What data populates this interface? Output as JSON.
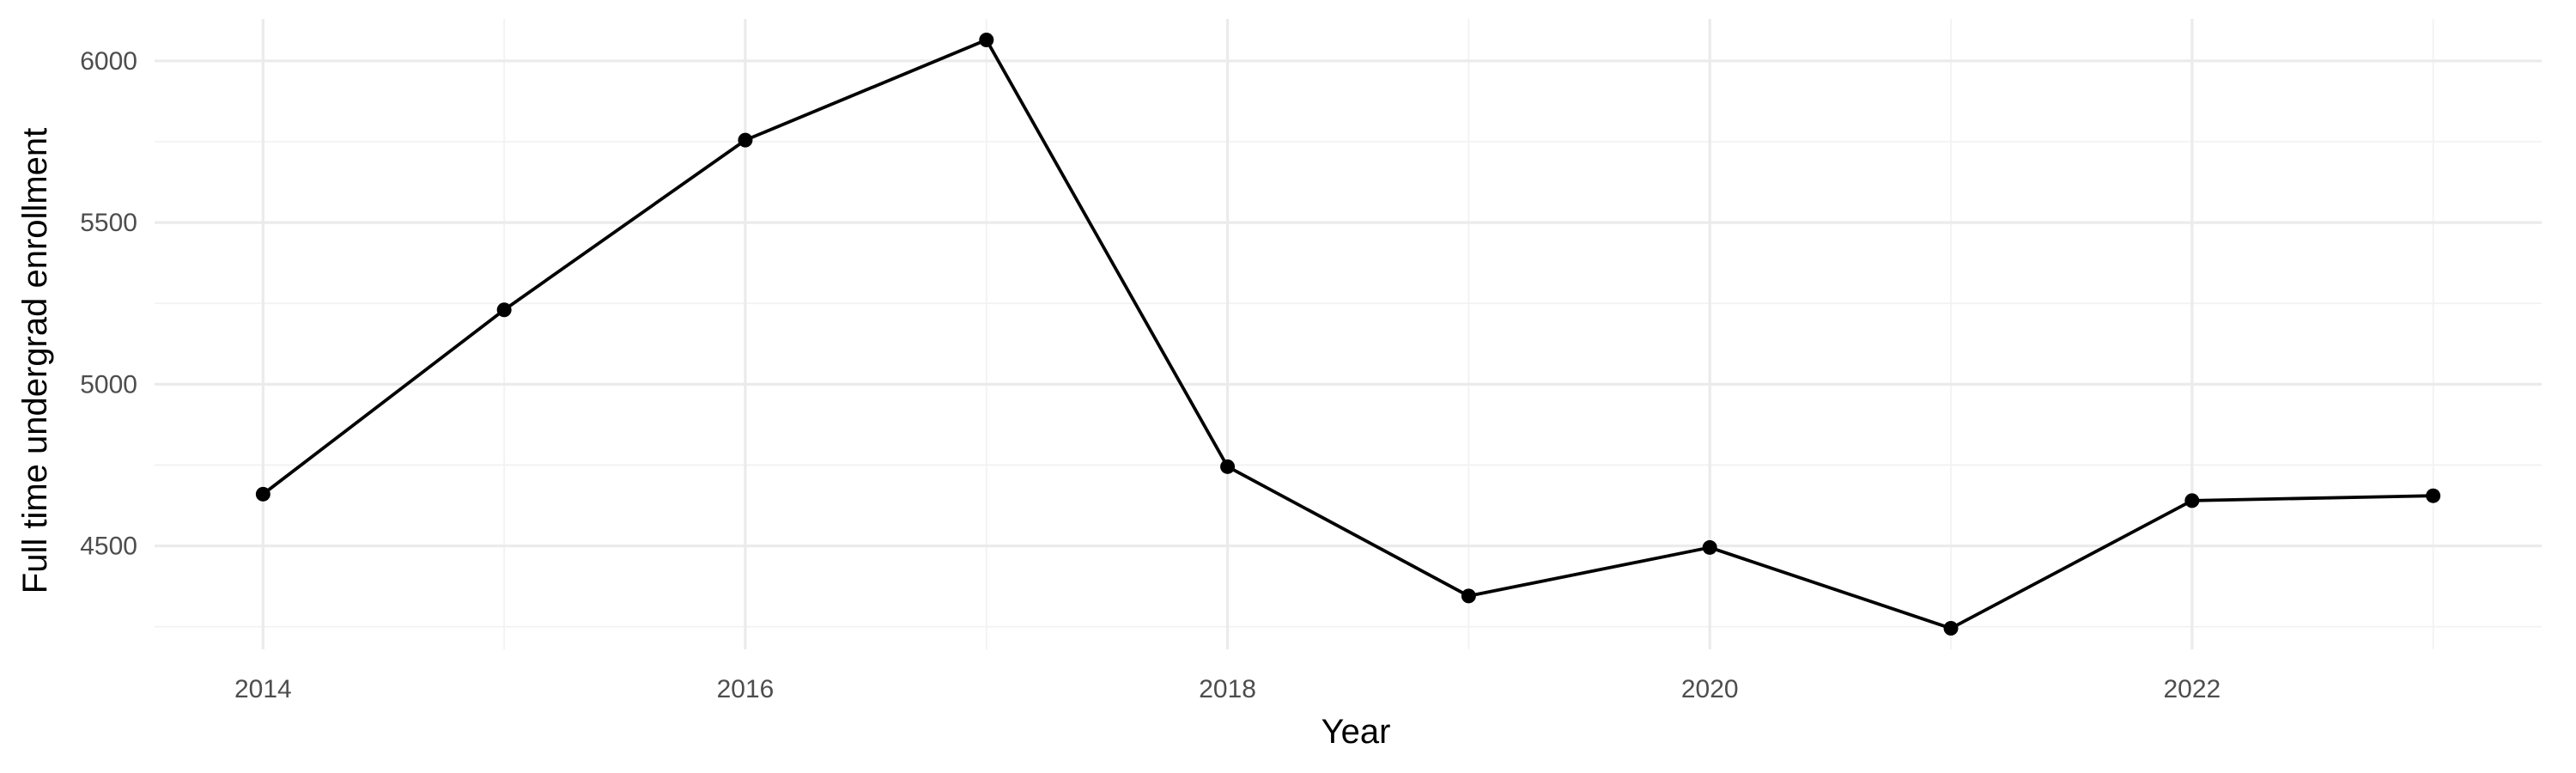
{
  "chart_data": {
    "type": "line",
    "title": "",
    "xlabel": "Year",
    "ylabel": "Full time undergrad enrollment",
    "x": [
      2014,
      2015,
      2016,
      2017,
      2018,
      2019,
      2020,
      2021,
      2022,
      2023
    ],
    "series": [
      {
        "values": [
          4660,
          5230,
          5755,
          6065,
          4745,
          4345,
          4495,
          4245,
          4640,
          4655
        ]
      }
    ],
    "x_ticks": [
      2014,
      2016,
      2018,
      2020,
      2022
    ],
    "y_ticks": [
      4500,
      5000,
      5500,
      6000
    ],
    "x_tick_labels": [
      "2014",
      "2016",
      "2018",
      "2020",
      "2022"
    ],
    "y_tick_labels": [
      "4500",
      "5000",
      "5500",
      "6000"
    ],
    "xlim": [
      2013.55,
      2023.45
    ],
    "ylim": [
      4180,
      6130
    ],
    "grid": true,
    "legend": "none",
    "line_color": "#000000",
    "point_color": "#000000",
    "grid_color": "#ebebeb"
  }
}
